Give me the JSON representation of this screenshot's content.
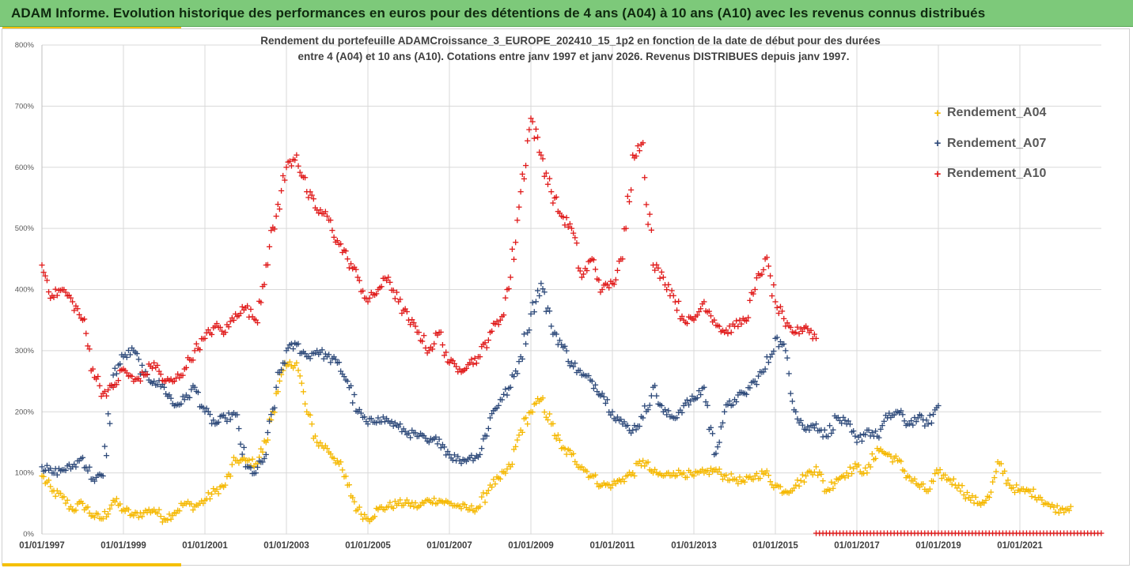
{
  "header": {
    "title": "ADAM Informe. Evolution historique des performances en euros pour des détentions de 4 ans (A04) à 10 ans (A10) avec les revenus connus distribués"
  },
  "colors": {
    "header_bg": "#7dc97a",
    "accent": "#f5c000",
    "grid": "#d9d9d9",
    "axis_text": "#595959"
  },
  "chart_data": {
    "type": "scatter",
    "title_line1": "Rendement du portefeuille ADAMCroissance_3_EUROPE_202410_15_1p2  en fonction de la date de début pour des durées",
    "title_line2": "entre 4 (A04) et 10 ans (A10). Cotations entre janv 1997 et janv 2026. Revenus DISTRIBUES depuis janv 1997.",
    "xlabel": "",
    "ylabel": "",
    "xlim": [
      1997.0,
      2023.0
    ],
    "ylim": [
      0,
      800
    ],
    "yticks": [
      "0%",
      "100%",
      "200%",
      "300%",
      "400%",
      "500%",
      "600%",
      "700%",
      "800%"
    ],
    "xticks": [
      {
        "year": 1997,
        "label": "01/01/1997"
      },
      {
        "year": 1999,
        "label": "01/01/1999"
      },
      {
        "year": 2001,
        "label": "01/01/2001"
      },
      {
        "year": 2003,
        "label": "01/01/2003"
      },
      {
        "year": 2005,
        "label": "01/01/2005"
      },
      {
        "year": 2007,
        "label": "01/01/2007"
      },
      {
        "year": 2009,
        "label": "01/01/2009"
      },
      {
        "year": 2011,
        "label": "01/01/2011"
      },
      {
        "year": 2013,
        "label": "01/01/2013"
      },
      {
        "year": 2015,
        "label": "01/01/2015"
      },
      {
        "year": 2017,
        "label": "01/01/2017"
      },
      {
        "year": 2019,
        "label": "01/01/2019"
      },
      {
        "year": 2021,
        "label": "01/01/2021"
      }
    ],
    "grid": true,
    "legend_position": "top-right",
    "marker": "+",
    "series": [
      {
        "name": "Rendement_A04",
        "color": "#f5b800",
        "x": [
          1997.0,
          1997.25,
          1997.5,
          1997.75,
          1998.0,
          1998.25,
          1998.5,
          1998.75,
          1999.0,
          1999.25,
          1999.5,
          1999.75,
          2000.0,
          2000.25,
          2000.5,
          2000.75,
          2001.0,
          2001.25,
          2001.5,
          2001.75,
          2002.0,
          2002.25,
          2002.5,
          2002.75,
          2003.0,
          2003.25,
          2003.5,
          2003.75,
          2004.0,
          2004.25,
          2004.5,
          2004.75,
          2005.0,
          2005.25,
          2005.5,
          2005.75,
          2006.0,
          2006.25,
          2006.5,
          2006.75,
          2007.0,
          2007.25,
          2007.5,
          2007.75,
          2008.0,
          2008.25,
          2008.5,
          2008.75,
          2009.0,
          2009.25,
          2009.5,
          2009.75,
          2010.0,
          2010.25,
          2010.5,
          2010.75,
          2011.0,
          2011.25,
          2011.5,
          2011.75,
          2012.0,
          2012.25,
          2012.5,
          2012.75,
          2013.0,
          2013.25,
          2013.5,
          2013.75,
          2014.0,
          2014.25,
          2014.5,
          2014.75,
          2015.0,
          2015.25,
          2015.5,
          2015.75,
          2016.0,
          2016.25,
          2016.5,
          2016.75,
          2017.0,
          2017.25,
          2017.5,
          2017.75,
          2018.0,
          2018.25,
          2018.5,
          2018.75,
          2019.0,
          2019.25,
          2019.5,
          2019.75,
          2020.0,
          2020.25,
          2020.5,
          2020.75,
          2021.0,
          2021.25,
          2021.5,
          2021.75,
          2022.0,
          2022.25
        ],
        "values": [
          95,
          70,
          60,
          40,
          50,
          30,
          25,
          55,
          40,
          30,
          35,
          40,
          25,
          35,
          50,
          45,
          55,
          70,
          80,
          120,
          120,
          115,
          150,
          230,
          275,
          280,
          200,
          150,
          140,
          120,
          80,
          40,
          25,
          40,
          45,
          50,
          50,
          45,
          55,
          55,
          50,
          45,
          40,
          45,
          80,
          90,
          110,
          170,
          200,
          220,
          180,
          140,
          130,
          110,
          95,
          80,
          80,
          90,
          100,
          120,
          100,
          95,
          100,
          100,
          95,
          100,
          105,
          95,
          90,
          85,
          95,
          100,
          80,
          70,
          80,
          95,
          110,
          70,
          90,
          100,
          110,
          100,
          140,
          130,
          120,
          95,
          80,
          70,
          100,
          90,
          80,
          60,
          50,
          60,
          115,
          80,
          70,
          70,
          60,
          45,
          40,
          45
        ]
      },
      {
        "name": "Rendement_A07",
        "color": "#2e4a7a",
        "x": [
          1997.0,
          1997.25,
          1997.5,
          1997.75,
          1998.0,
          1998.25,
          1998.5,
          1998.75,
          1999.0,
          1999.25,
          1999.5,
          1999.75,
          2000.0,
          2000.25,
          2000.5,
          2000.75,
          2001.0,
          2001.25,
          2001.5,
          2001.75,
          2002.0,
          2002.25,
          2002.5,
          2002.75,
          2003.0,
          2003.25,
          2003.5,
          2003.75,
          2004.0,
          2004.25,
          2004.5,
          2004.75,
          2005.0,
          2005.25,
          2005.5,
          2005.75,
          2006.0,
          2006.25,
          2006.5,
          2006.75,
          2007.0,
          2007.25,
          2007.5,
          2007.75,
          2008.0,
          2008.25,
          2008.5,
          2008.75,
          2009.0,
          2009.25,
          2009.5,
          2009.75,
          2010.0,
          2010.25,
          2010.5,
          2010.75,
          2011.0,
          2011.25,
          2011.5,
          2011.75,
          2012.0,
          2012.25,
          2012.5,
          2012.75,
          2013.0,
          2013.25,
          2013.5,
          2013.75,
          2014.0,
          2014.25,
          2014.5,
          2014.75,
          2015.0,
          2015.25,
          2015.5,
          2015.75,
          2016.0,
          2016.25,
          2016.5,
          2016.75,
          2017.0,
          2017.25,
          2017.5,
          2017.75,
          2018.0,
          2018.25,
          2018.5,
          2018.75,
          2019.0
        ],
        "values": [
          110,
          100,
          105,
          110,
          125,
          90,
          95,
          260,
          290,
          300,
          260,
          250,
          240,
          210,
          220,
          240,
          200,
          180,
          190,
          195,
          110,
          100,
          130,
          240,
          300,
          310,
          290,
          300,
          290,
          280,
          250,
          200,
          180,
          190,
          185,
          175,
          165,
          160,
          150,
          155,
          130,
          120,
          125,
          130,
          190,
          220,
          240,
          290,
          360,
          410,
          340,
          310,
          280,
          260,
          250,
          230,
          200,
          180,
          170,
          190,
          240,
          200,
          190,
          210,
          220,
          240,
          130,
          200,
          220,
          230,
          250,
          270,
          320,
          300,
          200,
          170,
          180,
          160,
          190,
          180,
          150,
          170,
          160,
          190,
          200,
          180,
          190,
          180,
          210
        ]
      },
      {
        "name": "Rendement_A10",
        "color": "#e01a1a",
        "x": [
          1997.0,
          1997.25,
          1997.5,
          1997.75,
          1998.0,
          1998.25,
          1998.5,
          1998.75,
          1999.0,
          1999.25,
          1999.5,
          1999.75,
          2000.0,
          2000.25,
          2000.5,
          2000.75,
          2001.0,
          2001.25,
          2001.5,
          2001.75,
          2002.0,
          2002.25,
          2002.5,
          2002.75,
          2003.0,
          2003.25,
          2003.5,
          2003.75,
          2004.0,
          2004.25,
          2004.5,
          2004.75,
          2005.0,
          2005.25,
          2005.5,
          2005.75,
          2006.0,
          2006.25,
          2006.5,
          2006.75,
          2007.0,
          2007.25,
          2007.5,
          2007.75,
          2008.0,
          2008.25,
          2008.5,
          2008.75,
          2009.0,
          2009.25,
          2009.5,
          2009.75,
          2010.0,
          2010.25,
          2010.5,
          2010.75,
          2011.0,
          2011.25,
          2011.5,
          2011.75,
          2012.0,
          2012.25,
          2012.5,
          2012.75,
          2013.0,
          2013.25,
          2013.5,
          2013.75,
          2014.0,
          2014.25,
          2014.5,
          2014.75,
          2015.0,
          2015.25,
          2015.5,
          2015.75,
          2016.0
        ],
        "values": [
          440,
          390,
          400,
          380,
          350,
          270,
          230,
          240,
          270,
          250,
          260,
          280,
          250,
          250,
          270,
          300,
          320,
          340,
          330,
          360,
          370,
          350,
          440,
          520,
          600,
          620,
          560,
          530,
          520,
          480,
          450,
          420,
          380,
          400,
          420,
          380,
          350,
          330,
          300,
          330,
          280,
          270,
          280,
          290,
          330,
          350,
          420,
          560,
          680,
          620,
          560,
          520,
          500,
          420,
          450,
          400,
          410,
          450,
          620,
          640,
          440,
          420,
          390,
          350,
          350,
          380,
          350,
          330,
          340,
          350,
          400,
          450,
          380,
          340,
          330,
          340,
          320
        ],
        "baseline_zero": {
          "x_start": 2016.0,
          "x_end": 2023.0,
          "value": 0
        }
      }
    ]
  }
}
